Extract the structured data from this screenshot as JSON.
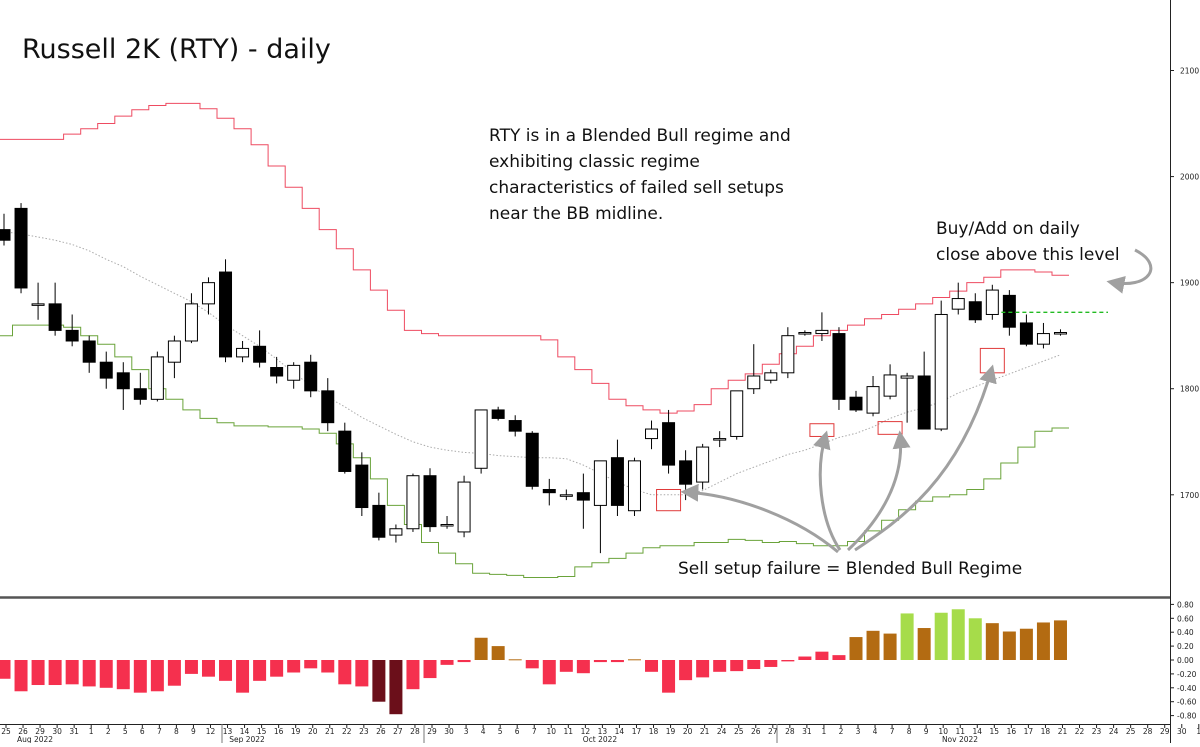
{
  "chart_data": {
    "type": "candlestick",
    "title": "Russell 2K (RTY) - daily",
    "annotations": {
      "regime_note": [
        "RTY is in a Blended Bull regime and",
        "exhibiting classic regime",
        "characteristics of failed sell setups",
        "near the BB midline."
      ],
      "buy_note": [
        "Buy/Add on daily",
        "close above this level"
      ],
      "failure_note": "Sell setup failure = Blended Bull Regime",
      "buy_level": 1872
    },
    "price_axis": {
      "ticks": [
        "2100",
        "2000",
        "1900",
        "1800",
        "1700"
      ],
      "ylim": [
        1610,
        2110
      ]
    },
    "oscillator_axis": {
      "ticks": [
        "0.80",
        "0.60",
        "0.40",
        "0.20",
        "0.00",
        "-0.20",
        "-0.40",
        "-0.60",
        "-0.80"
      ],
      "ylim": [
        -0.85,
        0.85
      ]
    },
    "x_axis": {
      "day_labels": [
        "25",
        "26",
        "29",
        "30",
        "31",
        "1",
        "2",
        "5",
        "6",
        "7",
        "8",
        "9",
        "12",
        "13",
        "14",
        "15",
        "16",
        "19",
        "20",
        "21",
        "22",
        "23",
        "26",
        "27",
        "28",
        "29",
        "30",
        "3",
        "4",
        "5",
        "6",
        "7",
        "10",
        "11",
        "12",
        "13",
        "14",
        "17",
        "18",
        "19",
        "20",
        "21",
        "24",
        "25",
        "26",
        "27",
        "28",
        "31",
        "1",
        "2",
        "3",
        "4",
        "7",
        "8",
        "9",
        "10",
        "11",
        "14",
        "15",
        "16",
        "17",
        "18",
        "21",
        "22",
        "23",
        "24",
        "25",
        "28",
        "29",
        "30",
        "1"
      ],
      "month_labels": [
        "Aug 2022",
        "Sep 2022",
        "Oct 2022",
        "Nov 2022"
      ]
    },
    "candles": [
      [
        1950,
        1965,
        1935,
        1940
      ],
      [
        1970,
        1975,
        1890,
        1895
      ],
      [
        1880,
        1900,
        1865,
        1880
      ],
      [
        1880,
        1900,
        1850,
        1855
      ],
      [
        1855,
        1870,
        1840,
        1845
      ],
      [
        1845,
        1850,
        1815,
        1825
      ],
      [
        1825,
        1835,
        1800,
        1810
      ],
      [
        1815,
        1825,
        1780,
        1800
      ],
      [
        1800,
        1815,
        1785,
        1790
      ],
      [
        1790,
        1835,
        1788,
        1830
      ],
      [
        1825,
        1850,
        1810,
        1845
      ],
      [
        1845,
        1890,
        1843,
        1880
      ],
      [
        1880,
        1905,
        1870,
        1900
      ],
      [
        1910,
        1922,
        1825,
        1830
      ],
      [
        1830,
        1845,
        1825,
        1838
      ],
      [
        1840,
        1855,
        1820,
        1825
      ],
      [
        1820,
        1830,
        1805,
        1812
      ],
      [
        1808,
        1825,
        1800,
        1822
      ],
      [
        1825,
        1832,
        1792,
        1798
      ],
      [
        1798,
        1810,
        1760,
        1768
      ],
      [
        1760,
        1768,
        1720,
        1722
      ],
      [
        1728,
        1740,
        1680,
        1688
      ],
      [
        1690,
        1702,
        1657,
        1660
      ],
      [
        1662,
        1672,
        1655,
        1668
      ],
      [
        1668,
        1720,
        1665,
        1718
      ],
      [
        1718,
        1725,
        1665,
        1670
      ],
      [
        1672,
        1680,
        1668,
        1672
      ],
      [
        1665,
        1718,
        1660,
        1712
      ],
      [
        1725,
        1780,
        1720,
        1780
      ],
      [
        1780,
        1783,
        1770,
        1772
      ],
      [
        1770,
        1775,
        1755,
        1760
      ],
      [
        1758,
        1760,
        1705,
        1708
      ],
      [
        1705,
        1715,
        1690,
        1702
      ],
      [
        1700,
        1705,
        1695,
        1700
      ],
      [
        1702,
        1720,
        1668,
        1695
      ],
      [
        1690,
        1730,
        1645,
        1732
      ],
      [
        1735,
        1752,
        1680,
        1690
      ],
      [
        1685,
        1735,
        1680,
        1732
      ],
      [
        1753,
        1770,
        1743,
        1762
      ],
      [
        1768,
        1780,
        1720,
        1728
      ],
      [
        1732,
        1742,
        1695,
        1710
      ],
      [
        1712,
        1748,
        1705,
        1745
      ],
      [
        1752,
        1760,
        1745,
        1753
      ],
      [
        1755,
        1798,
        1752,
        1798
      ],
      [
        1800,
        1842,
        1795,
        1812
      ],
      [
        1808,
        1818,
        1805,
        1815
      ],
      [
        1815,
        1858,
        1810,
        1850
      ],
      [
        1852,
        1855,
        1850,
        1853
      ],
      [
        1852,
        1872,
        1845,
        1855
      ],
      [
        1852,
        1858,
        1780,
        1790
      ],
      [
        1792,
        1798,
        1778,
        1780
      ],
      [
        1777,
        1812,
        1774,
        1802
      ],
      [
        1793,
        1823,
        1790,
        1813
      ],
      [
        1810,
        1815,
        1768,
        1812
      ],
      [
        1812,
        1835,
        1762,
        1762
      ],
      [
        1762,
        1883,
        1760,
        1870
      ],
      [
        1875,
        1900,
        1870,
        1885
      ],
      [
        1882,
        1890,
        1862,
        1865
      ],
      [
        1870,
        1898,
        1865,
        1893
      ],
      [
        1888,
        1893,
        1850,
        1858
      ],
      [
        1862,
        1870,
        1840,
        1842
      ],
      [
        1842,
        1862,
        1838,
        1852
      ],
      [
        1852,
        1856,
        1850,
        1853
      ]
    ],
    "bollinger_upper": [
      2035,
      2035,
      2035,
      2035,
      2040,
      2045,
      2050,
      2057,
      2063,
      2067,
      2069,
      2069,
      2064,
      2055,
      2045,
      2030,
      2010,
      1990,
      1970,
      1950,
      1932,
      1912,
      1893,
      1874,
      1855,
      1852,
      1850,
      1850,
      1850,
      1850,
      1850,
      1850,
      1846,
      1830,
      1818,
      1805,
      1790,
      1784,
      1780,
      1777,
      1779,
      1785,
      1800,
      1808,
      1814,
      1823,
      1833,
      1840,
      1850,
      1855,
      1860,
      1866,
      1870,
      1875,
      1880,
      1886,
      1892,
      1900,
      1905,
      1912,
      1912,
      1910,
      1907
    ],
    "bollinger_lower": [
      1850,
      1860,
      1860,
      1860,
      1858,
      1850,
      1842,
      1830,
      1818,
      1800,
      1790,
      1780,
      1772,
      1768,
      1765,
      1765,
      1764,
      1764,
      1762,
      1758,
      1748,
      1735,
      1715,
      1690,
      1672,
      1655,
      1645,
      1635,
      1626,
      1625,
      1624,
      1622,
      1622,
      1623,
      1632,
      1636,
      1640,
      1645,
      1650,
      1652,
      1652,
      1655,
      1655,
      1658,
      1657,
      1655,
      1656,
      1654,
      1652,
      1652,
      1656,
      1666,
      1676,
      1686,
      1694,
      1698,
      1700,
      1705,
      1715,
      1730,
      1745,
      1760,
      1763
    ],
    "bollinger_mid": [
      1948,
      1946,
      1943,
      1940,
      1936,
      1930,
      1922,
      1915,
      1906,
      1898,
      1890,
      1882,
      1872,
      1860,
      1850,
      1840,
      1828,
      1815,
      1803,
      1792,
      1783,
      1773,
      1765,
      1757,
      1750,
      1745,
      1742,
      1740,
      1739,
      1737,
      1736,
      1735,
      1735,
      1734,
      1728,
      1720,
      1712,
      1705,
      1700,
      1700,
      1700,
      1704,
      1712,
      1720,
      1726,
      1732,
      1738,
      1742,
      1748,
      1754,
      1758,
      1764,
      1772,
      1778,
      1782,
      1788,
      1796,
      1802,
      1808,
      1814,
      1820,
      1826,
      1832
    ],
    "oscillator": [
      -0.27,
      -0.45,
      -0.36,
      -0.36,
      -0.35,
      -0.38,
      -0.4,
      -0.42,
      -0.47,
      -0.45,
      -0.37,
      -0.2,
      -0.24,
      -0.3,
      -0.47,
      -0.3,
      -0.24,
      -0.18,
      -0.12,
      -0.18,
      -0.35,
      -0.38,
      -0.6,
      -0.78,
      -0.42,
      -0.26,
      -0.07,
      -0.03,
      0.32,
      0.2,
      0.01,
      -0.12,
      -0.35,
      -0.17,
      -0.19,
      -0.03,
      -0.03,
      0.01,
      -0.17,
      -0.47,
      -0.29,
      -0.25,
      -0.17,
      -0.16,
      -0.13,
      -0.1,
      -0.02,
      0.05,
      0.12,
      0.07,
      0.33,
      0.42,
      0.38,
      0.67,
      0.46,
      0.68,
      0.73,
      0.6,
      0.53,
      0.41,
      0.45,
      0.54,
      0.57
    ],
    "oscillator_colors": {
      "negative": "#f5304e",
      "negative_extreme": "#6b0f1a",
      "positive": "#b36b12",
      "positive_strong": "#a6dc4a"
    },
    "colors": {
      "upper_band": "#ee4b61",
      "lower_band": "#6aa33a",
      "mid_band": "#aaaaaa",
      "buy_line": "#22bb22",
      "highlight_box": "#e03a3a",
      "arrow": "#a0a0a0"
    }
  }
}
